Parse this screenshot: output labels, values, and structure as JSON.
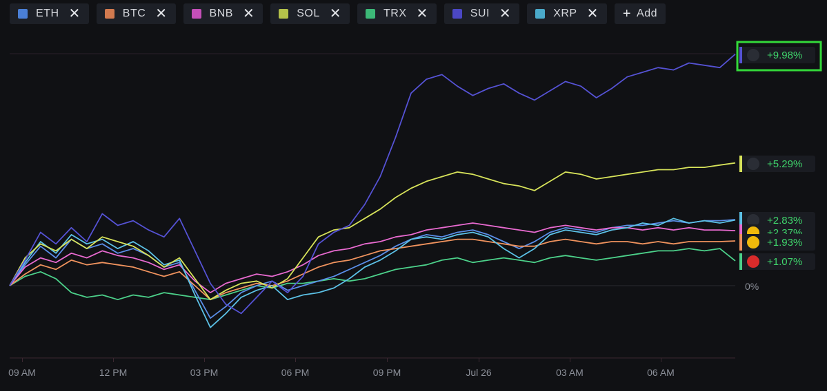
{
  "legend": {
    "chips": [
      {
        "label": "ETH",
        "color": "#4a7fd6"
      },
      {
        "label": "BTC",
        "color": "#d27a4f"
      },
      {
        "label": "BNB",
        "color": "#c44fb8"
      },
      {
        "label": "SOL",
        "color": "#b4c24a"
      },
      {
        "label": "TRX",
        "color": "#3cb877"
      },
      {
        "label": "SUI",
        "color": "#4b47c4"
      },
      {
        "label": "XRP",
        "color": "#4aa9c9"
      }
    ],
    "add_label": "Add",
    "close_glyph": "✕",
    "add_glyph": "+"
  },
  "chart_data": {
    "type": "line",
    "x_ticks": [
      "09 AM",
      "12 PM",
      "03 PM",
      "06 PM",
      "09 PM",
      "Jul 26",
      "03 AM",
      "06 AM"
    ],
    "y_ticks": [
      "0%"
    ],
    "ylim": [
      -3,
      12
    ],
    "x_count": 48,
    "series": [
      {
        "name": "SUI",
        "color": "#5552d4",
        "final_label": "+9.98%",
        "icon": "sui-icon",
        "values": [
          0,
          1.1,
          2.3,
          1.8,
          2.5,
          1.9,
          3.1,
          2.6,
          2.8,
          2.4,
          2.1,
          2.9,
          1.5,
          0.1,
          -0.8,
          -1.2,
          -0.5,
          0.2,
          -0.3,
          0.4,
          1.8,
          2.3,
          2.6,
          3.5,
          4.7,
          6.4,
          8.3,
          8.9,
          9.1,
          8.6,
          8.2,
          8.5,
          8.7,
          8.3,
          8.0,
          8.4,
          8.8,
          8.6,
          8.1,
          8.5,
          9.0,
          9.2,
          9.4,
          9.3,
          9.6,
          9.5,
          9.4,
          9.98
        ]
      },
      {
        "name": "SOL",
        "color": "#d7e35a",
        "final_label": "+5.29%",
        "icon": "sol-icon",
        "values": [
          0,
          1.2,
          1.8,
          1.5,
          2.0,
          1.6,
          2.1,
          1.9,
          1.7,
          1.3,
          0.8,
          1.2,
          0.3,
          -0.6,
          -0.2,
          0.1,
          0.2,
          -0.1,
          0.3,
          1.2,
          2.1,
          2.4,
          2.5,
          2.9,
          3.3,
          3.8,
          4.2,
          4.5,
          4.7,
          4.9,
          4.8,
          4.6,
          4.4,
          4.3,
          4.1,
          4.5,
          4.9,
          4.8,
          4.6,
          4.7,
          4.8,
          4.9,
          5.0,
          5.0,
          5.1,
          5.1,
          5.2,
          5.29
        ]
      },
      {
        "name": "XRP",
        "color": "#5cc1e6",
        "final_label": "+2.83%",
        "icon": "xrp-icon",
        "values": [
          0,
          1.0,
          1.9,
          1.4,
          2.2,
          1.8,
          2.0,
          1.6,
          1.9,
          1.5,
          0.9,
          1.1,
          -0.4,
          -1.8,
          -1.2,
          -0.5,
          -0.2,
          0.0,
          -0.6,
          -0.4,
          -0.3,
          -0.1,
          0.3,
          0.8,
          1.1,
          1.5,
          2.0,
          2.1,
          2.0,
          2.2,
          2.3,
          2.1,
          1.6,
          1.2,
          1.6,
          2.2,
          2.4,
          2.3,
          2.2,
          2.4,
          2.5,
          2.7,
          2.6,
          2.9,
          2.7,
          2.8,
          2.7,
          2.83
        ]
      },
      {
        "name": "BNB",
        "color": "#e86ad0",
        "final_label": "+2.37%",
        "icon": "bnb-icon",
        "values": [
          0,
          0.8,
          1.2,
          1.0,
          1.4,
          1.2,
          1.5,
          1.3,
          1.2,
          1.0,
          0.7,
          0.9,
          0.2,
          -0.3,
          0.1,
          0.3,
          0.5,
          0.4,
          0.6,
          0.9,
          1.3,
          1.5,
          1.6,
          1.8,
          1.9,
          2.1,
          2.2,
          2.4,
          2.5,
          2.6,
          2.7,
          2.6,
          2.5,
          2.4,
          2.3,
          2.5,
          2.6,
          2.5,
          2.4,
          2.5,
          2.5,
          2.4,
          2.5,
          2.4,
          2.5,
          2.4,
          2.4,
          2.37
        ]
      },
      {
        "name": "BTC",
        "color": "#f0935e",
        "final_label": "+1.93%",
        "icon": "btc-icon",
        "values": [
          0,
          0.5,
          0.9,
          0.7,
          1.1,
          0.9,
          1.0,
          0.9,
          0.8,
          0.6,
          0.4,
          0.6,
          0.0,
          -0.6,
          -0.3,
          -0.1,
          0.1,
          0.0,
          0.2,
          0.5,
          0.8,
          1.0,
          1.1,
          1.3,
          1.5,
          1.6,
          1.7,
          1.8,
          1.9,
          2.0,
          2.0,
          1.9,
          1.8,
          1.7,
          1.7,
          1.9,
          2.0,
          1.9,
          1.8,
          1.9,
          1.9,
          1.8,
          1.9,
          1.8,
          1.9,
          1.9,
          1.9,
          1.93
        ]
      },
      {
        "name": "ETH",
        "color": "#5a8ee8",
        "final_label": "",
        "icon": "eth-icon",
        "values": [
          0,
          0.9,
          1.7,
          1.2,
          2.0,
          1.6,
          1.8,
          1.4,
          1.6,
          1.3,
          0.8,
          1.0,
          -0.2,
          -1.4,
          -0.9,
          -0.3,
          0.0,
          0.2,
          -0.2,
          0.0,
          0.2,
          0.4,
          0.7,
          1.0,
          1.3,
          1.7,
          2.0,
          2.2,
          2.1,
          2.3,
          2.4,
          2.2,
          1.9,
          1.6,
          1.9,
          2.3,
          2.5,
          2.4,
          2.3,
          2.5,
          2.6,
          2.6,
          2.7,
          2.8,
          2.7,
          2.8,
          2.8,
          2.85
        ]
      },
      {
        "name": "TRX",
        "color": "#4cd18a",
        "final_label": "+1.07%",
        "icon": "trx-icon",
        "values": [
          0,
          0.4,
          0.6,
          0.3,
          -0.3,
          -0.5,
          -0.4,
          -0.6,
          -0.4,
          -0.5,
          -0.3,
          -0.4,
          -0.5,
          -0.6,
          -0.4,
          -0.2,
          0.0,
          -0.1,
          0.1,
          0.1,
          0.2,
          0.3,
          0.2,
          0.3,
          0.5,
          0.7,
          0.8,
          0.9,
          1.1,
          1.2,
          1.0,
          1.1,
          1.2,
          1.1,
          1.0,
          1.2,
          1.3,
          1.2,
          1.1,
          1.2,
          1.3,
          1.4,
          1.5,
          1.5,
          1.6,
          1.5,
          1.6,
          1.07
        ]
      }
    ]
  }
}
